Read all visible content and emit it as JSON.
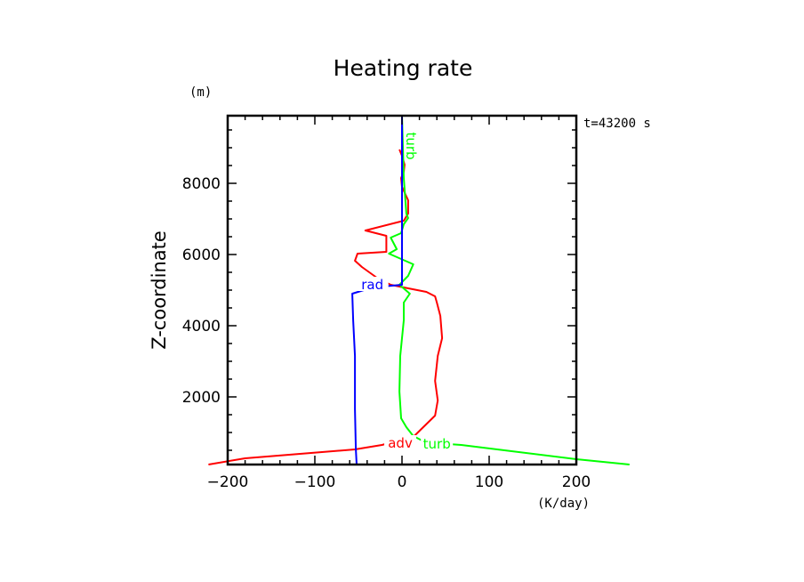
{
  "chart_data": {
    "type": "line",
    "title": "Heating rate",
    "xlabel": "(K/day)",
    "ylabel": "Z-coordinate",
    "yunit": "(m)",
    "annotation": "t=43200 s",
    "xlim": [
      -200,
      200
    ],
    "ylim": [
      100,
      9900
    ],
    "xticks": [
      -200,
      -100,
      0,
      100,
      200
    ],
    "xtick_labels": [
      "−200",
      "−100",
      "0",
      "100",
      "200"
    ],
    "yticks": [
      2000,
      4000,
      6000,
      8000
    ],
    "ytick_labels": [
      "2000",
      "4000",
      "6000",
      "8000"
    ],
    "grid": false,
    "series": [
      {
        "name": "adv",
        "color": "#ff0000",
        "points": [
          [
            -222,
            100
          ],
          [
            -180,
            275
          ],
          [
            -54,
            525
          ],
          [
            -23,
            650
          ],
          [
            14,
            900
          ],
          [
            38,
            1475
          ],
          [
            41,
            1900
          ],
          [
            38,
            2450
          ],
          [
            41,
            3150
          ],
          [
            46,
            3650
          ],
          [
            44,
            4275
          ],
          [
            40,
            4650
          ],
          [
            38,
            4825
          ],
          [
            28,
            4950
          ],
          [
            2,
            5075
          ],
          [
            -13,
            5150
          ],
          [
            -29,
            5350
          ],
          [
            -46,
            5650
          ],
          [
            -54,
            5825
          ],
          [
            -51,
            6025
          ],
          [
            -18,
            6075
          ],
          [
            -18,
            6525
          ],
          [
            -42,
            6675
          ],
          [
            2,
            6950
          ],
          [
            7,
            7150
          ],
          [
            7,
            7525
          ],
          [
            0,
            7900
          ],
          [
            -1,
            8150
          ],
          [
            2,
            8325
          ],
          [
            3,
            8525
          ],
          [
            0,
            8775
          ],
          [
            -3,
            8950
          ]
        ],
        "label_at": [
          -2,
          625
        ]
      },
      {
        "name": "turb",
        "color": "#00ff00",
        "points": [
          [
            0,
            9900
          ],
          [
            2,
            8150
          ],
          [
            5,
            7150
          ],
          [
            7,
            7025
          ],
          [
            2,
            6850
          ],
          [
            -1,
            6600
          ],
          [
            -13,
            6475
          ],
          [
            -6,
            6150
          ],
          [
            -15,
            6025
          ],
          [
            13,
            5725
          ],
          [
            7,
            5400
          ],
          [
            -3,
            5150
          ],
          [
            9,
            4900
          ],
          [
            2,
            4650
          ],
          [
            2,
            4150
          ],
          [
            -2,
            3150
          ],
          [
            -3,
            2150
          ],
          [
            -1,
            1400
          ],
          [
            5,
            1150
          ],
          [
            13,
            900
          ],
          [
            27,
            725
          ],
          [
            68,
            650
          ],
          [
            200,
            250
          ],
          [
            261,
            100
          ]
        ],
        "label_at": [
          40,
          600
        ],
        "label2_at": [
          0,
          9050
        ]
      },
      {
        "name": "rad",
        "color": "#0000ff",
        "points": [
          [
            0,
            9900
          ],
          [
            0,
            5150
          ],
          [
            -34,
            5075
          ],
          [
            -57,
            4900
          ],
          [
            -56,
            4150
          ],
          [
            -54,
            3150
          ],
          [
            -54,
            1650
          ],
          [
            -53,
            525
          ],
          [
            -52,
            100
          ]
        ],
        "label_at": [
          -34,
          5075
        ]
      }
    ]
  }
}
